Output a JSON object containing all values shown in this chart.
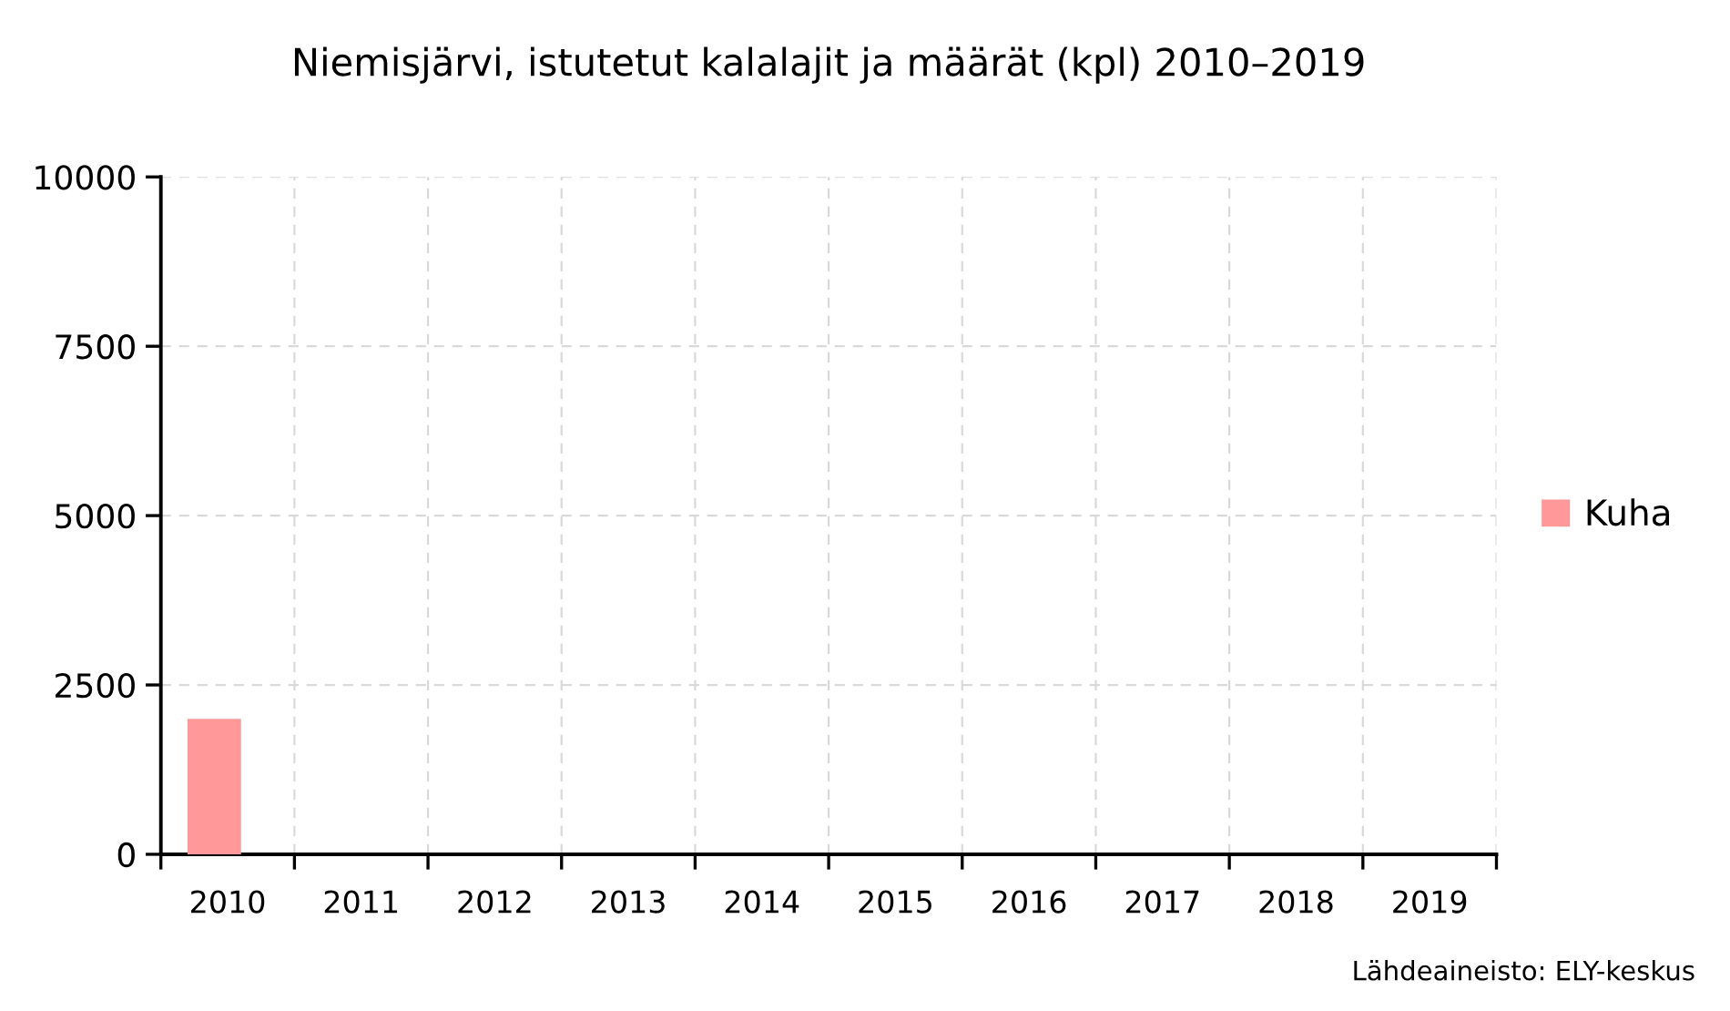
{
  "chart_data": {
    "type": "bar",
    "title": "Niemisjärvi, istutetut kalalajit ja määrät (kpl) 2010–2019",
    "categories": [
      "2010",
      "2011",
      "2012",
      "2013",
      "2014",
      "2015",
      "2016",
      "2017",
      "2018",
      "2019"
    ],
    "series": [
      {
        "name": "Kuha",
        "color": "#ff9999",
        "values": [
          2000,
          null,
          null,
          null,
          null,
          null,
          null,
          null,
          null,
          null
        ]
      }
    ],
    "ylim": [
      0,
      10000
    ],
    "yticks": [
      0,
      2500,
      5000,
      7500,
      10000
    ],
    "grid": true,
    "legend": "right",
    "annotations": [
      "Lähdeaineisto: ELY-keskus"
    ]
  }
}
